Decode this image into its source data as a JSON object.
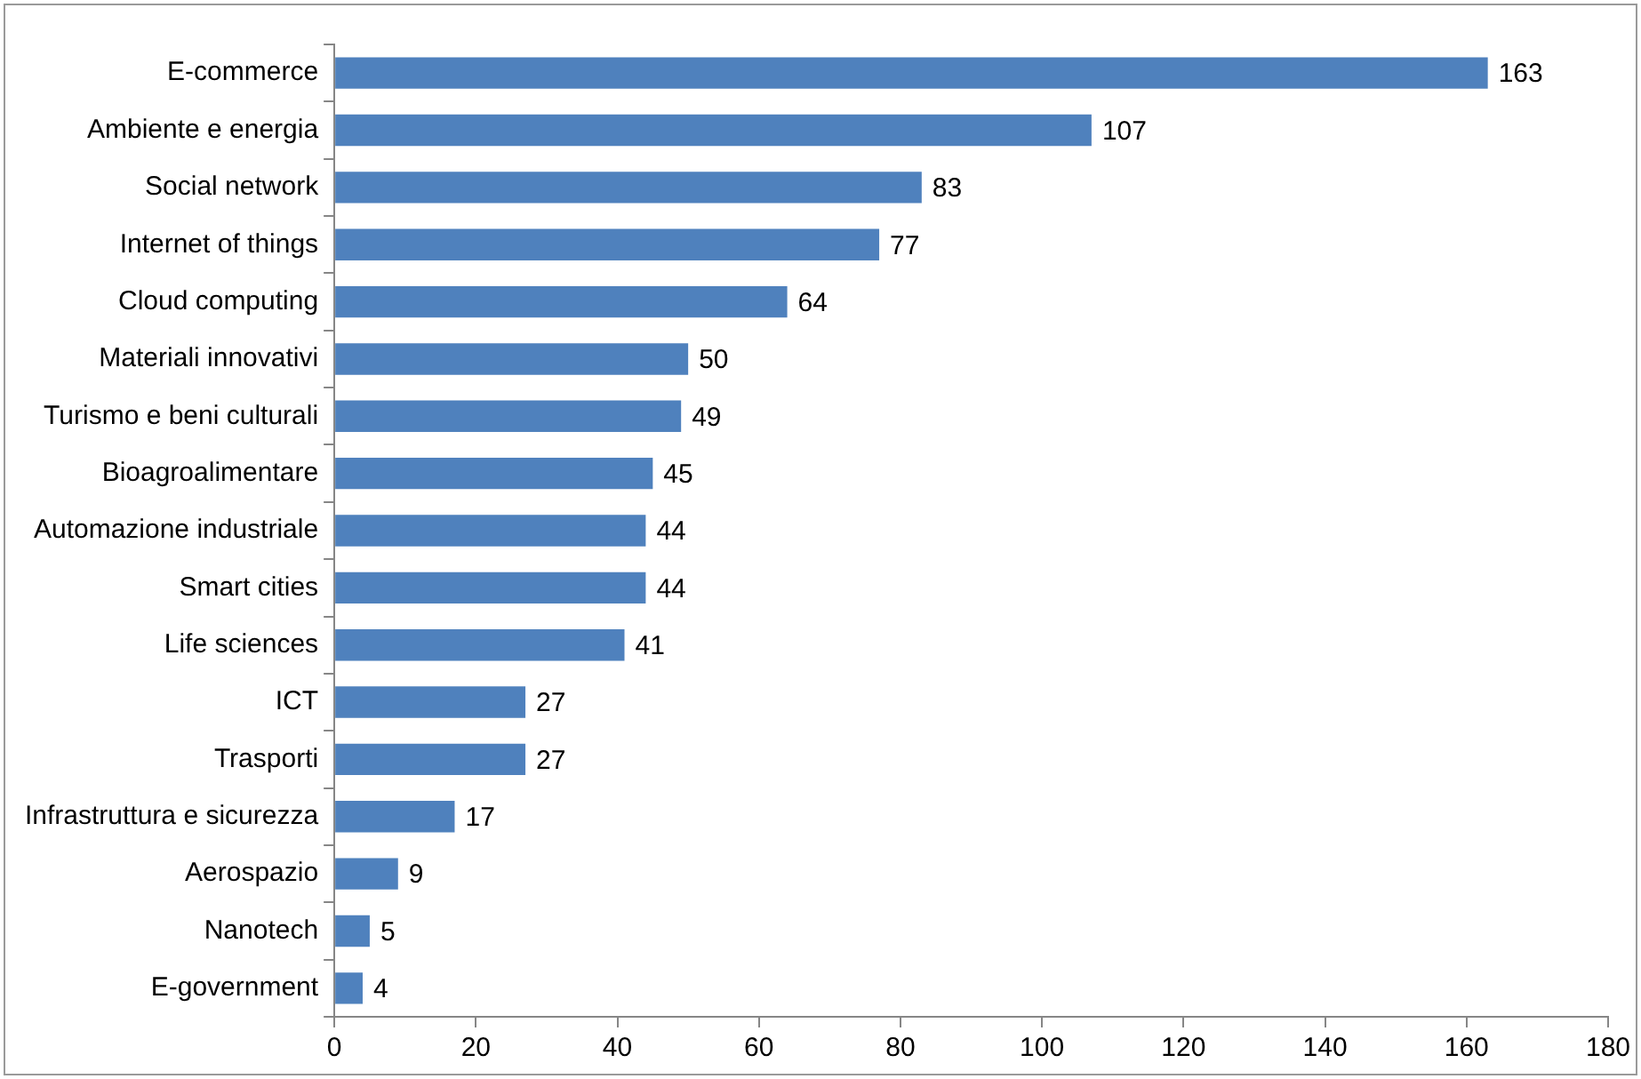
{
  "chart_data": {
    "type": "bar",
    "orientation": "horizontal",
    "categories": [
      "E-commerce",
      "Ambiente e energia",
      "Social network",
      "Internet of things",
      "Cloud computing",
      "Materiali innovativi",
      "Turismo e beni culturali",
      "Bioagroalimentare",
      "Automazione industriale",
      "Smart cities",
      "Life sciences",
      "ICT",
      "Trasporti",
      "Infrastruttura e sicurezza",
      "Aerospazio",
      "Nanotech",
      "E-government"
    ],
    "values": [
      163,
      107,
      83,
      77,
      64,
      50,
      49,
      45,
      44,
      44,
      41,
      27,
      27,
      17,
      9,
      5,
      4
    ],
    "color": "#4f81bd",
    "xlim": [
      0,
      180
    ],
    "xticks": [
      0,
      20,
      40,
      60,
      80,
      100,
      120,
      140,
      160,
      180
    ],
    "grid": false,
    "legend": false,
    "data_labels": true
  }
}
